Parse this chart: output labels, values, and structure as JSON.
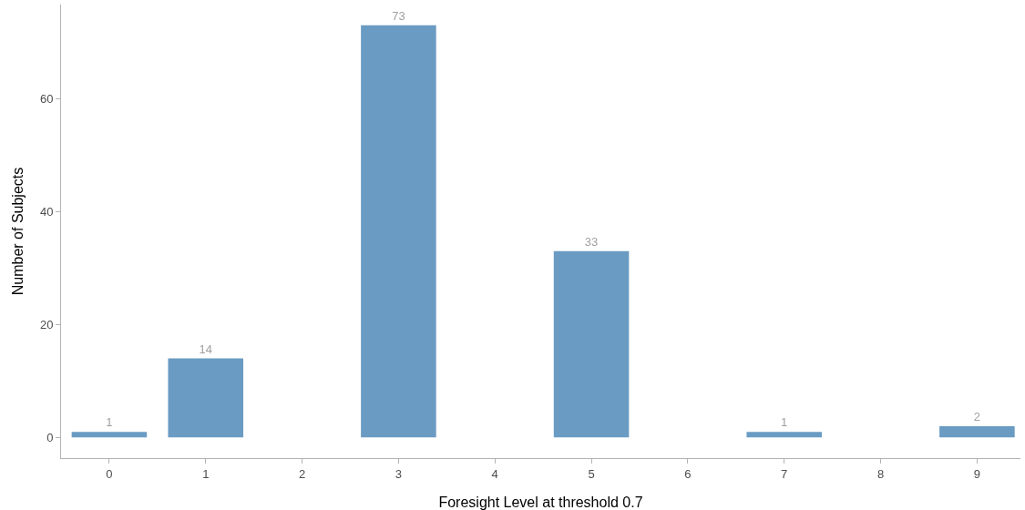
{
  "chart_data": {
    "type": "bar",
    "xlabel": "Foresight Level at threshold 0.7",
    "ylabel": "Number of Subjects",
    "x": [
      0,
      1,
      3,
      5,
      7,
      9
    ],
    "values": [
      1,
      14,
      73,
      33,
      1,
      2
    ],
    "color": "#6a9bc3",
    "xlim": [
      -0.5,
      9.45
    ],
    "xticks": [
      0,
      1,
      2,
      3,
      4,
      5,
      6,
      7,
      8,
      9
    ],
    "ylim": [
      -3.65,
      76.65
    ],
    "yticks": [
      0,
      20,
      40,
      60
    ],
    "grid": false,
    "data_labels": true
  }
}
